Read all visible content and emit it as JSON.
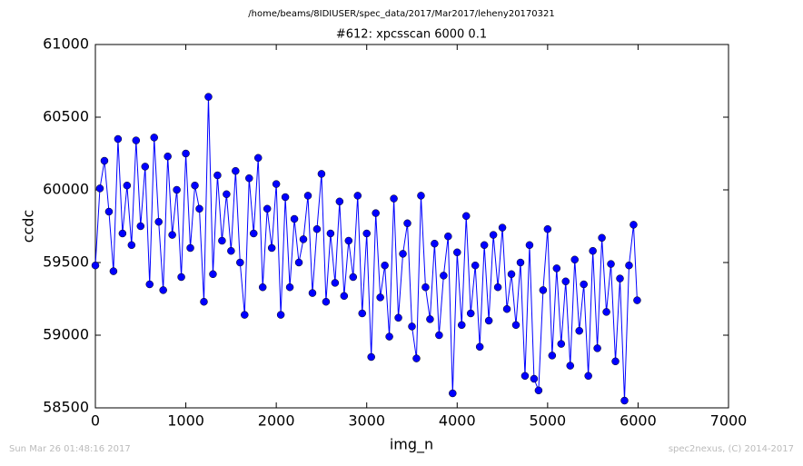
{
  "chart_data": {
    "type": "line",
    "suptitle": "/home/beams/8IDIUSER/spec_data/2017/Mar2017/leheny20170321",
    "title": "#612: xpcsscan 6000 0.1",
    "xlabel": "img_n",
    "ylabel": "ccdc",
    "footer_left": "Sun Mar 26 01:48:16 2017",
    "footer_right": "spec2nexus, (C) 2014-2017",
    "x": [
      0,
      50,
      100,
      150,
      200,
      250,
      300,
      350,
      400,
      450,
      500,
      550,
      600,
      650,
      700,
      750,
      800,
      850,
      900,
      950,
      1000,
      1050,
      1100,
      1150,
      1200,
      1250,
      1300,
      1350,
      1400,
      1450,
      1500,
      1550,
      1600,
      1650,
      1700,
      1750,
      1800,
      1850,
      1900,
      1950,
      2000,
      2050,
      2100,
      2150,
      2200,
      2250,
      2300,
      2350,
      2400,
      2450,
      2500,
      2550,
      2600,
      2650,
      2700,
      2750,
      2800,
      2850,
      2900,
      2950,
      3000,
      3050,
      3100,
      3150,
      3200,
      3250,
      3300,
      3350,
      3400,
      3450,
      3500,
      3550,
      3600,
      3650,
      3700,
      3750,
      3800,
      3850,
      3900,
      3950,
      4000,
      4050,
      4100,
      4150,
      4200,
      4250,
      4300,
      4350,
      4400,
      4450,
      4500,
      4550,
      4600,
      4650,
      4700,
      4750,
      4800,
      4850,
      4900,
      4950,
      5000,
      5050,
      5100,
      5150,
      5200,
      5250,
      5300,
      5350,
      5400,
      5450,
      5500,
      5550,
      5600,
      5650,
      5700,
      5750,
      5800,
      5850,
      5900,
      5950,
      5990
    ],
    "series": [
      {
        "name": "ccdc",
        "color": "#0000ff",
        "values": [
          59480,
          60010,
          60200,
          59850,
          59440,
          60350,
          59700,
          60030,
          59620,
          60340,
          59750,
          60160,
          59350,
          60360,
          59780,
          59310,
          60230,
          59690,
          60000,
          59400,
          60250,
          59600,
          60030,
          59870,
          59230,
          60640,
          59420,
          60100,
          59650,
          59970,
          59580,
          60130,
          59500,
          59140,
          60080,
          59700,
          60220,
          59330,
          59870,
          59600,
          60040,
          59140,
          59950,
          59330,
          59800,
          59500,
          59660,
          59960,
          59290,
          59730,
          60110,
          59230,
          59700,
          59360,
          59920,
          59270,
          59650,
          59400,
          59960,
          59150,
          59700,
          58850,
          59840,
          59260,
          59480,
          58990,
          59940,
          59120,
          59560,
          59770,
          59060,
          58840,
          59960,
          59330,
          59110,
          59630,
          59000,
          59410,
          59680,
          58600,
          59570,
          59070,
          59820,
          59150,
          59480,
          58920,
          59620,
          59100,
          59690,
          59330,
          59740,
          59180,
          59420,
          59070,
          59500,
          58720,
          59620,
          58700,
          58620,
          59310,
          59730,
          58860,
          59460,
          58940,
          59370,
          58790,
          59520,
          59030,
          59350,
          58720,
          59580,
          58910,
          59670,
          59160,
          59490,
          58820,
          59390,
          58550,
          59480,
          59760,
          59240
        ]
      }
    ],
    "xlim": [
      0,
      7000
    ],
    "xticks": [
      0,
      1000,
      2000,
      3000,
      4000,
      5000,
      6000,
      7000
    ],
    "ylim": [
      58500,
      61000
    ],
    "yticks": [
      58500,
      59000,
      59500,
      60000,
      60500,
      61000
    ]
  }
}
